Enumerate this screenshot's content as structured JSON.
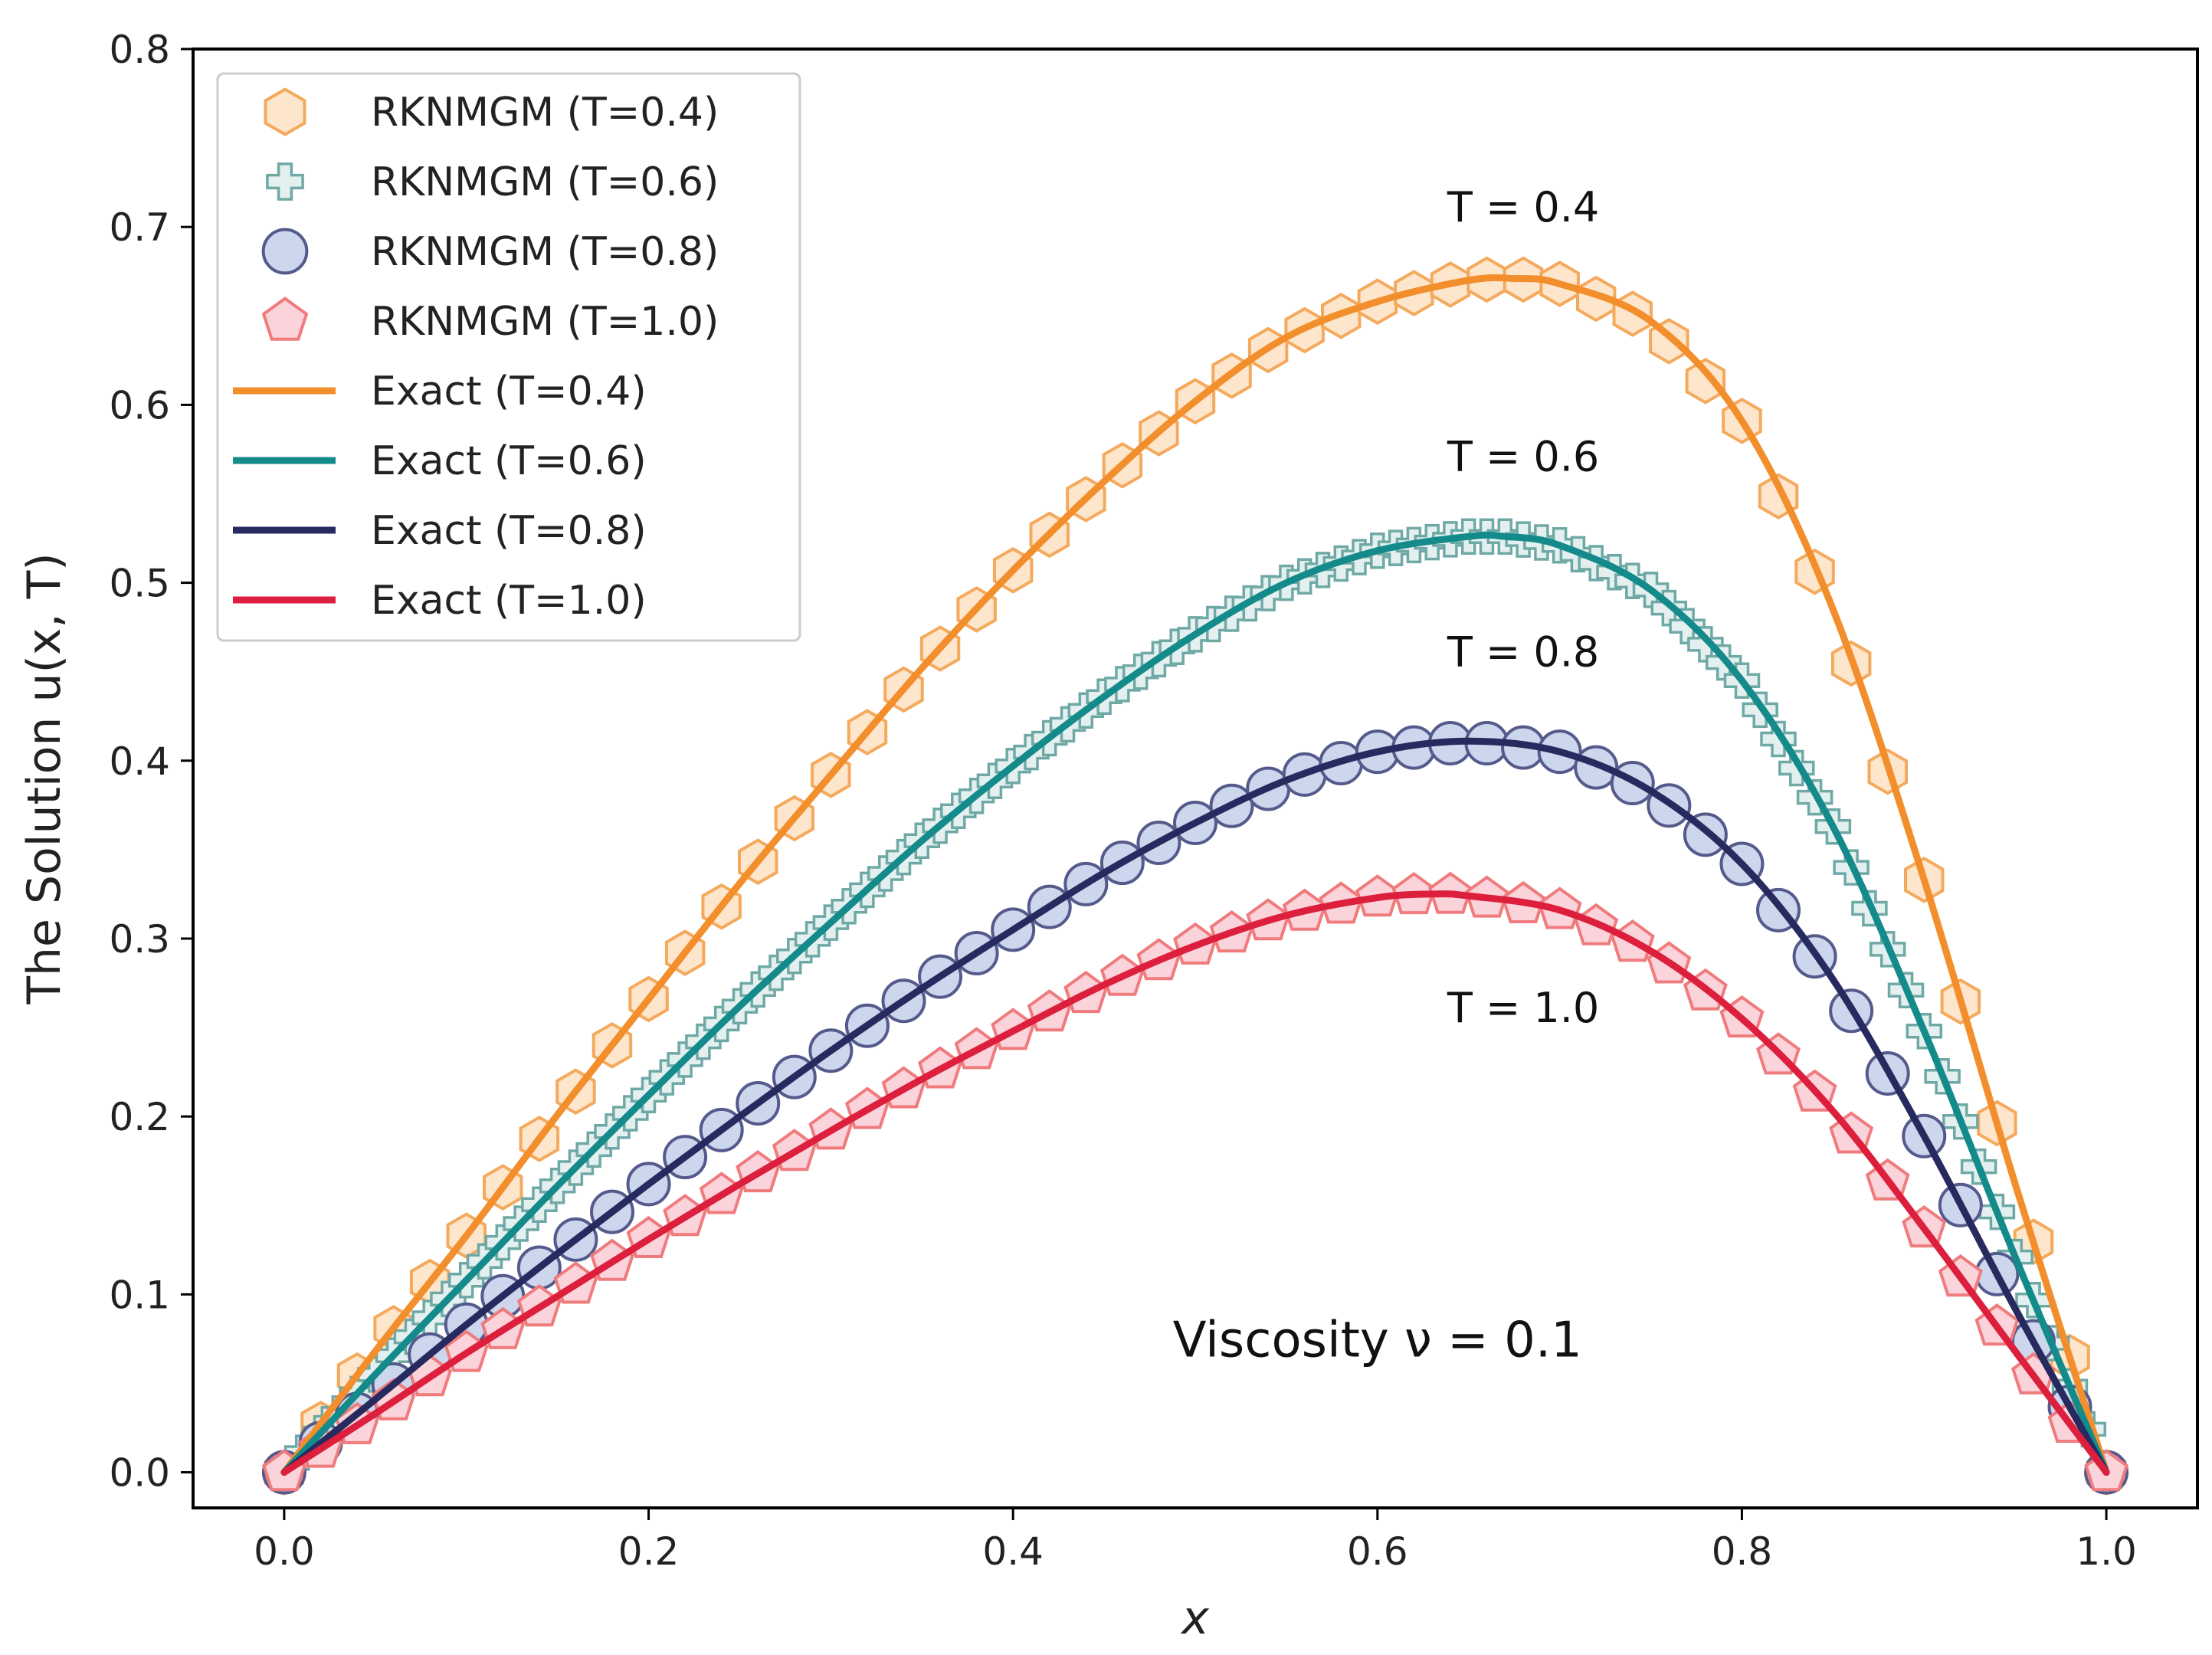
{
  "chart_data": {
    "type": "line",
    "xlabel": "x",
    "ylabel": "The Solution u(x, T)",
    "xlim": [
      -0.05,
      1.05
    ],
    "ylim": [
      -0.02,
      0.8
    ],
    "xticks": [
      "0.0",
      "0.2",
      "0.4",
      "0.6",
      "0.8",
      "1.0"
    ],
    "yticks": [
      "0.0",
      "0.1",
      "0.2",
      "0.3",
      "0.4",
      "0.5",
      "0.6",
      "0.7",
      "0.8"
    ],
    "legend_position": "top-left",
    "annotations": [
      {
        "text": "T = 0.4",
        "x": 0.68,
        "y": 0.703
      },
      {
        "text": "T = 0.6",
        "x": 0.68,
        "y": 0.563
      },
      {
        "text": "T = 0.8",
        "x": 0.68,
        "y": 0.453
      },
      {
        "text": "T = 1.0",
        "x": 0.68,
        "y": 0.253
      },
      {
        "text": "Viscosity ν = 0.1",
        "x": 0.6,
        "y": 0.065,
        "main": true
      }
    ],
    "series": [
      {
        "name": "Exact (T=0.4)",
        "kind": "line",
        "color": "#f28e2b",
        "x": [
          0.0,
          0.05,
          0.1,
          0.15,
          0.2,
          0.25,
          0.3,
          0.35,
          0.4,
          0.45,
          0.5,
          0.55,
          0.6,
          0.65,
          0.675,
          0.7,
          0.75,
          0.8,
          0.85,
          0.9,
          0.95,
          1.0
        ],
        "y": [
          0.0,
          0.068,
          0.133,
          0.201,
          0.266,
          0.331,
          0.392,
          0.452,
          0.507,
          0.557,
          0.602,
          0.638,
          0.658,
          0.67,
          0.671,
          0.668,
          0.647,
          0.591,
          0.485,
          0.333,
          0.162,
          0.0
        ]
      },
      {
        "name": "Exact (T=0.6)",
        "kind": "line",
        "color": "#148a8a",
        "x": [
          0.0,
          0.05,
          0.1,
          0.15,
          0.2,
          0.25,
          0.3,
          0.35,
          0.4,
          0.45,
          0.5,
          0.55,
          0.6,
          0.65,
          0.67,
          0.7,
          0.75,
          0.8,
          0.85,
          0.9,
          0.95,
          1.0
        ],
        "y": [
          0.0,
          0.055,
          0.108,
          0.161,
          0.212,
          0.262,
          0.309,
          0.355,
          0.397,
          0.436,
          0.471,
          0.5,
          0.518,
          0.526,
          0.526,
          0.521,
          0.496,
          0.445,
          0.363,
          0.248,
          0.121,
          0.0
        ]
      },
      {
        "name": "Exact (T=0.8)",
        "kind": "line",
        "color": "#262a5e",
        "x": [
          0.0,
          0.05,
          0.1,
          0.15,
          0.2,
          0.25,
          0.3,
          0.35,
          0.4,
          0.45,
          0.5,
          0.55,
          0.6,
          0.65,
          0.7,
          0.75,
          0.8,
          0.85,
          0.9,
          0.95,
          1.0
        ],
        "y": [
          0.0,
          0.041,
          0.083,
          0.123,
          0.162,
          0.2,
          0.237,
          0.272,
          0.305,
          0.337,
          0.365,
          0.389,
          0.405,
          0.411,
          0.405,
          0.383,
          0.342,
          0.277,
          0.189,
          0.092,
          0.0
        ]
      },
      {
        "name": "Exact (T=1.0)",
        "kind": "line",
        "color": "#dc1f3c",
        "x": [
          0.0,
          0.05,
          0.1,
          0.15,
          0.2,
          0.25,
          0.3,
          0.35,
          0.4,
          0.45,
          0.5,
          0.55,
          0.6,
          0.63,
          0.65,
          0.7,
          0.75,
          0.8,
          0.85,
          0.9,
          0.95,
          1.0
        ],
        "y": [
          0.0,
          0.033,
          0.067,
          0.099,
          0.131,
          0.162,
          0.192,
          0.221,
          0.248,
          0.274,
          0.296,
          0.313,
          0.323,
          0.325,
          0.324,
          0.316,
          0.293,
          0.255,
          0.203,
          0.137,
          0.068,
          0.0
        ]
      },
      {
        "name": "RKNMGM (T=0.4)",
        "kind": "markers",
        "marker": "hexagon",
        "edge": "#f5a95c",
        "fill": "#fde6cc",
        "of": "Exact (T=0.4)",
        "step": 0.02
      },
      {
        "name": "RKNMGM (T=0.6)",
        "kind": "markers",
        "marker": "plus",
        "edge": "#6fa9a6",
        "fill": "#e4f0ef",
        "of": "Exact (T=0.6)",
        "step": 0.01
      },
      {
        "name": "RKNMGM (T=0.8)",
        "kind": "markers",
        "marker": "circle",
        "edge": "#555a8c",
        "fill": "#ccd6ec",
        "of": "Exact (T=0.8)",
        "step": 0.02
      },
      {
        "name": "RKNMGM (T=1.0)",
        "kind": "markers",
        "marker": "pentagon",
        "edge": "#ef7b7d",
        "fill": "#fbd3da",
        "of": "Exact (T=1.0)",
        "step": 0.02
      }
    ]
  }
}
